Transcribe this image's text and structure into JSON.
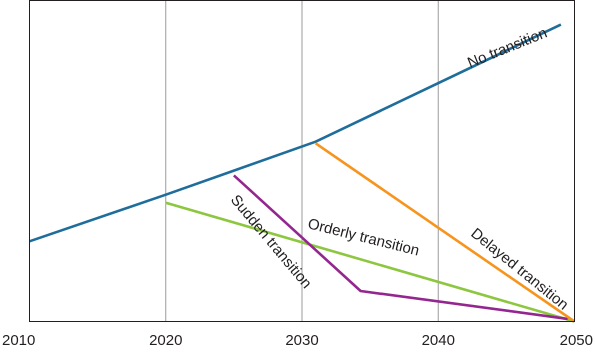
{
  "chart_data": {
    "type": "line",
    "title": "",
    "xlabel": "",
    "ylabel": "",
    "x_ticks": [
      "2010",
      "2020",
      "2030",
      "2040",
      "2050"
    ],
    "xlim": [
      2010,
      2050
    ],
    "ylim": [
      0,
      100
    ],
    "vertical_grid": true,
    "horizontal_grid": false,
    "series": [
      {
        "name": "No transition",
        "color": "#1f6d9b",
        "points": [
          [
            2010,
            25
          ],
          [
            2020,
            39.5
          ],
          [
            2025,
            47
          ],
          [
            2031,
            56
          ],
          [
            2049,
            92.5
          ]
        ]
      },
      {
        "name": "Orderly transition",
        "color": "#8dc63f",
        "points": [
          [
            2020,
            37
          ],
          [
            2050,
            0
          ]
        ]
      },
      {
        "name": "Sudden transition",
        "color": "#93278f",
        "points": [
          [
            2025,
            45.5
          ],
          [
            2034.3,
            9.5
          ],
          [
            2049.5,
            0.8
          ]
        ]
      },
      {
        "name": "Delayed transition",
        "color": "#f7941d",
        "points": [
          [
            2031,
            55.5
          ],
          [
            2050,
            0
          ]
        ]
      }
    ]
  }
}
